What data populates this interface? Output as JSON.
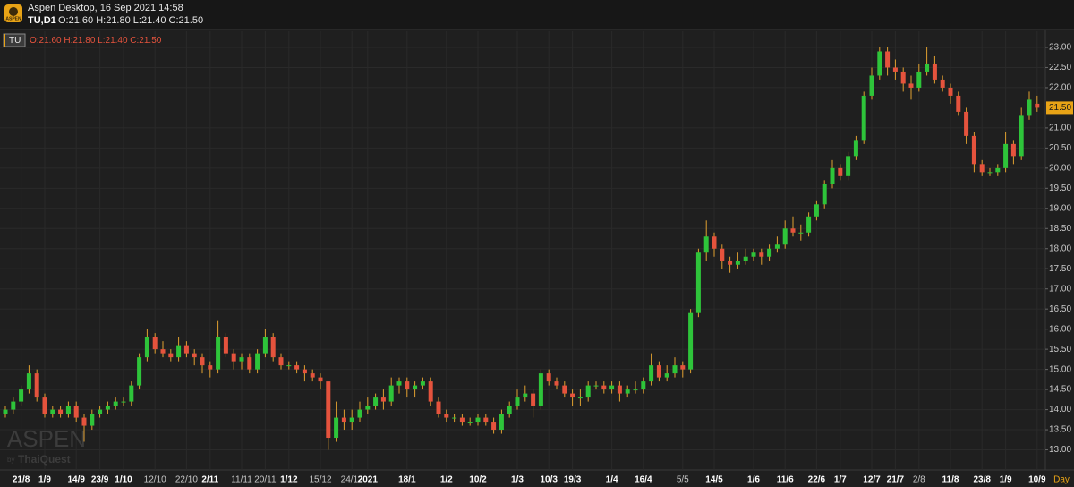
{
  "header": {
    "logo": "ASPEN",
    "title": "Aspen Desktop, 16 Sep 2021 14:58",
    "symbol": "TU,D1",
    "ohlc": "O:21.60 H:21.80 L:21.40 C:21.50"
  },
  "legend": {
    "symbol": "TU",
    "ohlc": "O:21.60 H:21.80 L:21.40 C:21.50"
  },
  "watermark": {
    "brand": "ASPEN",
    "by": "by",
    "maker": "ThaiQuest"
  },
  "chart_data": {
    "type": "candlestick",
    "categories": [
      null,
      null,
      "21/8",
      null,
      null,
      "1/9",
      null,
      null,
      null,
      "14/9",
      null,
      null,
      "23/9",
      null,
      null,
      "1/10",
      null,
      null,
      null,
      "12/10",
      null,
      null,
      null,
      "22/10",
      null,
      null,
      "2/11",
      null,
      null,
      null,
      "11/11",
      null,
      null,
      "20/11",
      null,
      null,
      "1/12",
      null,
      null,
      null,
      "15/12",
      null,
      null,
      null,
      "24/12",
      null,
      "2021",
      null,
      null,
      null,
      null,
      "18/1",
      null,
      null,
      null,
      null,
      "1/2",
      null,
      null,
      null,
      "10/2",
      null,
      null,
      null,
      null,
      "1/3",
      null,
      null,
      null,
      "10/3",
      null,
      null,
      "19/3",
      null,
      null,
      null,
      null,
      "1/4",
      null,
      null,
      null,
      "16/4",
      null,
      null,
      null,
      null,
      "5/5",
      null,
      null,
      null,
      "14/5",
      null,
      null,
      null,
      null,
      "1/6",
      null,
      null,
      null,
      "11/6",
      null,
      null,
      null,
      "22/6",
      null,
      null,
      "1/7",
      null,
      null,
      null,
      "12/7",
      null,
      null,
      "21/7",
      null,
      null,
      "2/8",
      null,
      null,
      null,
      "11/8",
      null,
      null,
      null,
      "23/8",
      null,
      null,
      "1/9",
      null,
      null,
      null,
      "10/9"
    ],
    "open": [
      13.9,
      14.0,
      14.2,
      14.5,
      14.9,
      14.3,
      13.9,
      14.0,
      13.9,
      14.1,
      13.8,
      13.6,
      13.9,
      14.0,
      14.1,
      14.2,
      14.2,
      14.6,
      15.3,
      15.8,
      15.5,
      15.4,
      15.3,
      15.6,
      15.4,
      15.3,
      15.1,
      15.0,
      15.8,
      15.4,
      15.2,
      15.3,
      15.0,
      15.4,
      15.8,
      15.3,
      15.1,
      15.1,
      15.0,
      14.9,
      14.8,
      14.7,
      13.3,
      13.8,
      13.7,
      13.8,
      14.0,
      14.1,
      14.3,
      14.2,
      14.6,
      14.7,
      14.5,
      14.6,
      14.7,
      14.2,
      13.9,
      13.8,
      13.8,
      13.7,
      13.7,
      13.8,
      13.7,
      13.5,
      13.9,
      14.1,
      14.3,
      14.4,
      14.1,
      14.9,
      14.7,
      14.6,
      14.4,
      14.3,
      14.3,
      14.6,
      14.6,
      14.5,
      14.6,
      14.4,
      14.5,
      14.5,
      14.7,
      15.1,
      14.8,
      14.9,
      15.1,
      15.0,
      16.4,
      17.9,
      18.3,
      18.0,
      17.7,
      17.6,
      17.7,
      17.8,
      17.9,
      17.8,
      18.0,
      18.1,
      18.5,
      18.4,
      18.4,
      18.8,
      19.1,
      19.6,
      20.0,
      19.8,
      20.3,
      20.7,
      21.8,
      22.3,
      22.9,
      22.5,
      22.4,
      22.1,
      22.0,
      22.4,
      22.6,
      22.2,
      22.0,
      21.8,
      21.4,
      20.8,
      20.1,
      19.9,
      19.9,
      20.0,
      20.6,
      20.3,
      21.3,
      21.6
    ],
    "high": [
      14.1,
      14.3,
      14.6,
      15.1,
      15.0,
      14.4,
      14.1,
      14.1,
      14.2,
      14.2,
      13.9,
      14.0,
      14.1,
      14.2,
      14.3,
      14.3,
      14.7,
      15.4,
      16.0,
      15.9,
      15.7,
      15.5,
      15.8,
      15.7,
      15.5,
      15.4,
      15.2,
      16.2,
      15.9,
      15.5,
      15.4,
      15.4,
      15.5,
      16.0,
      15.9,
      15.4,
      15.2,
      15.2,
      15.1,
      15.0,
      14.9,
      14.7,
      14.2,
      14.0,
      14.0,
      14.2,
      14.3,
      14.4,
      14.5,
      14.8,
      14.8,
      14.8,
      14.7,
      14.8,
      14.8,
      14.3,
      14.0,
      13.9,
      13.9,
      13.8,
      13.9,
      13.9,
      13.8,
      14.0,
      14.2,
      14.5,
      14.6,
      14.5,
      15.0,
      15.0,
      14.8,
      14.7,
      14.5,
      14.5,
      14.7,
      14.7,
      14.7,
      14.7,
      14.7,
      14.6,
      14.7,
      14.8,
      15.4,
      15.2,
      15.1,
      15.3,
      15.2,
      16.5,
      18.0,
      18.7,
      18.4,
      18.1,
      17.8,
      17.9,
      18.0,
      18.0,
      18.0,
      18.1,
      18.3,
      18.7,
      18.8,
      18.6,
      18.9,
      19.2,
      19.7,
      20.2,
      20.1,
      20.4,
      20.8,
      21.9,
      22.5,
      23.0,
      23.0,
      22.7,
      22.5,
      22.3,
      22.6,
      23.0,
      22.8,
      22.3,
      22.1,
      21.9,
      21.5,
      20.9,
      20.2,
      20.0,
      20.1,
      20.9,
      20.7,
      21.5,
      21.9,
      21.8
    ],
    "low": [
      13.8,
      13.9,
      14.1,
      14.4,
      14.2,
      13.8,
      13.8,
      13.8,
      13.8,
      13.7,
      13.2,
      13.5,
      13.8,
      13.9,
      14.0,
      14.1,
      14.1,
      14.5,
      15.2,
      15.4,
      15.3,
      15.2,
      15.2,
      15.3,
      15.1,
      14.9,
      14.8,
      14.9,
      15.3,
      15.0,
      15.0,
      14.9,
      14.9,
      15.3,
      15.2,
      15.0,
      15.0,
      14.9,
      14.7,
      14.7,
      14.5,
      13.0,
      13.2,
      13.5,
      13.5,
      13.7,
      13.9,
      14.0,
      14.0,
      14.1,
      14.4,
      14.3,
      14.3,
      14.5,
      14.1,
      13.8,
      13.7,
      13.7,
      13.6,
      13.6,
      13.6,
      13.6,
      13.4,
      13.4,
      13.8,
      14.0,
      14.2,
      13.8,
      14.0,
      14.6,
      14.5,
      14.3,
      14.1,
      14.1,
      14.2,
      14.5,
      14.4,
      14.4,
      14.2,
      14.3,
      14.4,
      14.4,
      14.6,
      14.7,
      14.7,
      14.8,
      14.8,
      14.9,
      16.3,
      17.7,
      17.8,
      17.5,
      17.4,
      17.5,
      17.6,
      17.7,
      17.6,
      17.7,
      17.9,
      18.0,
      18.3,
      18.2,
      18.3,
      18.7,
      19.0,
      19.5,
      19.7,
      19.7,
      20.2,
      20.6,
      21.7,
      22.2,
      22.3,
      22.2,
      21.9,
      21.7,
      21.9,
      22.3,
      22.1,
      21.9,
      21.6,
      21.3,
      20.6,
      19.9,
      19.8,
      19.8,
      19.8,
      19.9,
      20.1,
      20.2,
      21.2,
      21.4
    ],
    "close": [
      14.0,
      14.2,
      14.5,
      14.9,
      14.3,
      13.9,
      14.0,
      13.9,
      14.1,
      13.8,
      13.6,
      13.9,
      14.0,
      14.1,
      14.2,
      14.2,
      14.6,
      15.3,
      15.8,
      15.5,
      15.4,
      15.3,
      15.6,
      15.4,
      15.3,
      15.1,
      15.0,
      15.8,
      15.4,
      15.2,
      15.3,
      15.0,
      15.4,
      15.8,
      15.3,
      15.1,
      15.1,
      15.0,
      14.9,
      14.8,
      14.7,
      13.3,
      13.8,
      13.7,
      13.8,
      14.0,
      14.1,
      14.3,
      14.2,
      14.6,
      14.7,
      14.5,
      14.6,
      14.7,
      14.2,
      13.9,
      13.8,
      13.8,
      13.7,
      13.7,
      13.8,
      13.7,
      13.5,
      13.9,
      14.1,
      14.3,
      14.4,
      14.1,
      14.9,
      14.7,
      14.6,
      14.4,
      14.3,
      14.3,
      14.6,
      14.6,
      14.5,
      14.6,
      14.4,
      14.5,
      14.5,
      14.7,
      15.1,
      14.8,
      14.9,
      15.1,
      15.0,
      16.4,
      17.9,
      18.3,
      18.0,
      17.7,
      17.6,
      17.7,
      17.8,
      17.9,
      17.8,
      18.0,
      18.1,
      18.5,
      18.4,
      18.4,
      18.8,
      19.1,
      19.6,
      20.0,
      19.8,
      20.3,
      20.7,
      21.8,
      22.3,
      22.9,
      22.5,
      22.4,
      22.1,
      22.0,
      22.4,
      22.6,
      22.2,
      22.0,
      21.8,
      21.4,
      20.8,
      20.1,
      19.9,
      19.9,
      20.0,
      20.6,
      20.3,
      21.3,
      21.7,
      21.5
    ],
    "up_color": "#2ec43a",
    "down_color": "#e5533d",
    "wick_color": "#e0a030",
    "ylim": [
      12.5,
      23.4
    ],
    "yticks": [
      {
        "value": 13,
        "label": "13.00"
      },
      {
        "value": 13.5,
        "label": "13.50"
      },
      {
        "value": 14,
        "label": "14.00"
      },
      {
        "value": 14.5,
        "label": "14.50"
      },
      {
        "value": 15,
        "label": "15.00"
      },
      {
        "value": 15.5,
        "label": "15.50"
      },
      {
        "value": 16,
        "label": "16.00"
      },
      {
        "value": 16.5,
        "label": "16.50"
      },
      {
        "value": 17,
        "label": "17.00"
      },
      {
        "value": 17.5,
        "label": "17.50"
      },
      {
        "value": 18,
        "label": "18.00"
      },
      {
        "value": 18.5,
        "label": "18.50"
      },
      {
        "value": 19,
        "label": "19.00"
      },
      {
        "value": 19.5,
        "label": "19.50"
      },
      {
        "value": 20,
        "label": "20.00"
      },
      {
        "value": 20.5,
        "label": "20.50"
      },
      {
        "value": 21,
        "label": "21.00"
      },
      {
        "value": 22,
        "label": "22.00"
      },
      {
        "value": 22.5,
        "label": "22.50"
      },
      {
        "value": 23,
        "label": "23.00"
      }
    ],
    "last_price": {
      "value": 21.5,
      "label": "21.50"
    },
    "period": "Day",
    "grid": true
  }
}
